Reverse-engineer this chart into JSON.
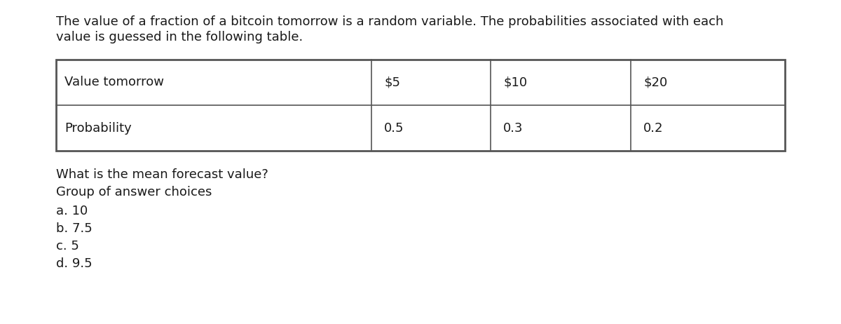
{
  "description_line1": "The value of a fraction of a bitcoin tomorrow is a random variable. The probabilities associated with each",
  "description_line2": "value is guessed in the following table.",
  "row1_label": "Value tomorrow",
  "row1_values": [
    "$5",
    "$10",
    "$20"
  ],
  "row2_label": "Probability",
  "row2_values": [
    "0.5",
    "0.3",
    "0.2"
  ],
  "question": "What is the mean forecast value?",
  "group_label": "Group of answer choices",
  "choices": [
    "a. 10",
    "b. 7.5",
    "c. 5",
    "d. 9.5"
  ],
  "bg_color": "#ffffff",
  "text_color": "#1a1a1a",
  "table_border_color": "#555555",
  "font_size_desc": 13.0,
  "font_size_table": 13.0,
  "font_size_body": 13.0,
  "fig_width": 12.0,
  "fig_height": 4.62,
  "dpi": 100
}
